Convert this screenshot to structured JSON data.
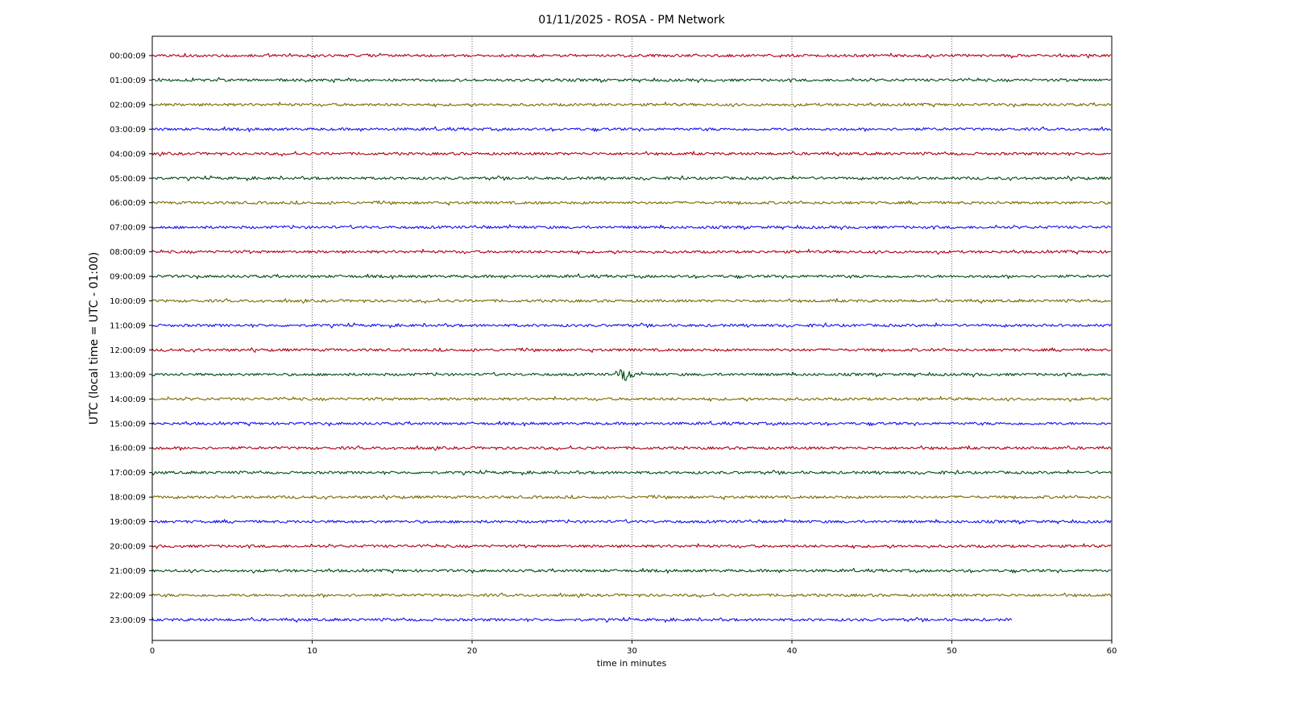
{
  "chart_data": {
    "type": "line",
    "title": "01/11/2025 - ROSA - PM Network",
    "xlabel": "time in minutes",
    "ylabel": "UTC (local time = UTC - 01:00)",
    "xlim": [
      0,
      60
    ],
    "xticks": [
      0,
      10,
      20,
      30,
      40,
      50,
      60
    ],
    "grid": "vertical dotted",
    "colors": [
      "#b00012",
      "#004d10",
      "#7a6a00",
      "#1010f0"
    ],
    "series": [
      {
        "row_label": "00:00:09",
        "x_start": 0,
        "x_end": 60
      },
      {
        "row_label": "01:00:09",
        "x_start": 0,
        "x_end": 60
      },
      {
        "row_label": "02:00:09",
        "x_start": 0,
        "x_end": 60
      },
      {
        "row_label": "03:00:09",
        "x_start": 0,
        "x_end": 60
      },
      {
        "row_label": "04:00:09",
        "x_start": 0,
        "x_end": 60
      },
      {
        "row_label": "05:00:09",
        "x_start": 0,
        "x_end": 60
      },
      {
        "row_label": "06:00:09",
        "x_start": 0,
        "x_end": 60
      },
      {
        "row_label": "07:00:09",
        "x_start": 0,
        "x_end": 60
      },
      {
        "row_label": "08:00:09",
        "x_start": 0,
        "x_end": 60
      },
      {
        "row_label": "09:00:09",
        "x_start": 0,
        "x_end": 60
      },
      {
        "row_label": "10:00:09",
        "x_start": 0,
        "x_end": 60
      },
      {
        "row_label": "11:00:09",
        "x_start": 0,
        "x_end": 60
      },
      {
        "row_label": "12:00:09",
        "x_start": 0,
        "x_end": 60
      },
      {
        "row_label": "13:00:09",
        "x_start": 0,
        "x_end": 60,
        "event_at_minutes": 29.5
      },
      {
        "row_label": "14:00:09",
        "x_start": 0,
        "x_end": 60
      },
      {
        "row_label": "15:00:09",
        "x_start": 0,
        "x_end": 60
      },
      {
        "row_label": "16:00:09",
        "x_start": 0,
        "x_end": 60
      },
      {
        "row_label": "17:00:09",
        "x_start": 0,
        "x_end": 60
      },
      {
        "row_label": "18:00:09",
        "x_start": 0,
        "x_end": 60
      },
      {
        "row_label": "19:00:09",
        "x_start": 0,
        "x_end": 60
      },
      {
        "row_label": "20:00:09",
        "x_start": 0,
        "x_end": 60
      },
      {
        "row_label": "21:00:09",
        "x_start": 0,
        "x_end": 60
      },
      {
        "row_label": "22:00:09",
        "x_start": 0,
        "x_end": 60
      },
      {
        "row_label": "23:00:09",
        "x_start": 0,
        "x_end": 53.8
      }
    ]
  }
}
